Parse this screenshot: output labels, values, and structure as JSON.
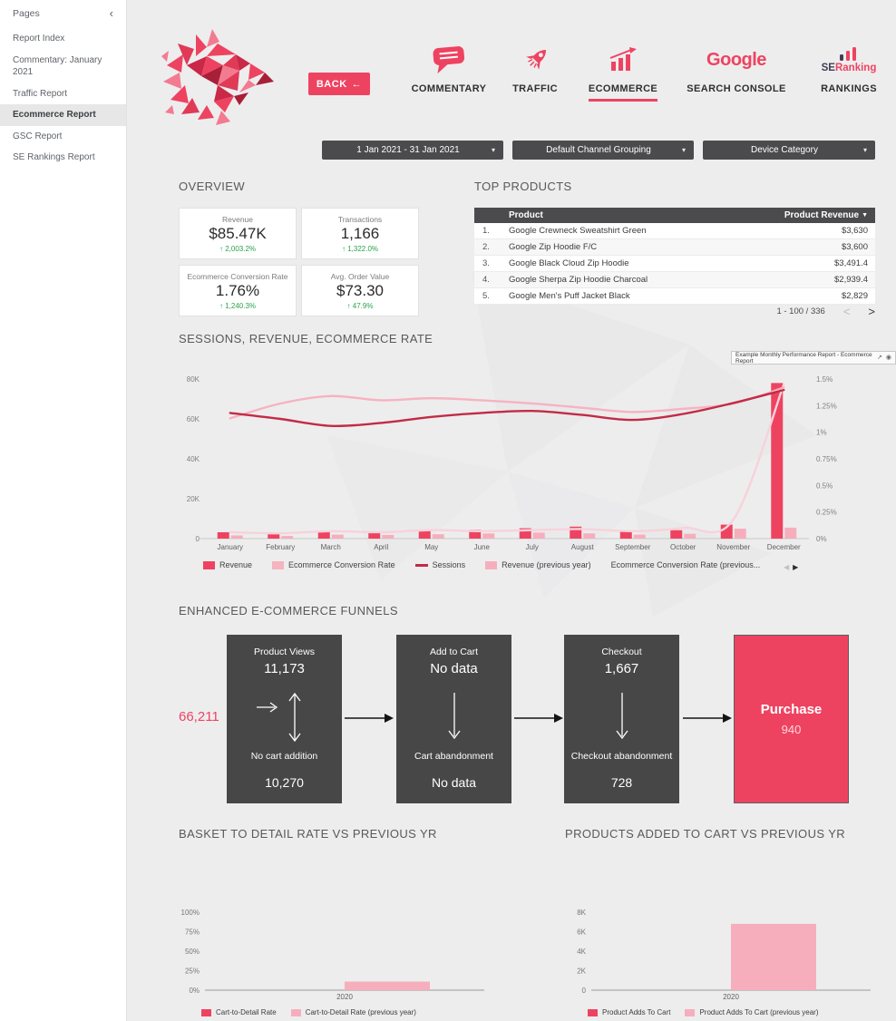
{
  "colors": {
    "accent": "#ee4360",
    "accent_dark": "#c22b45",
    "light_pink": "#f6aebd",
    "pale_pink": "#f8d2da",
    "box_gray": "#474747",
    "positive_green": "#2ba24c",
    "header_bar": "#4b4b4d"
  },
  "ui": {
    "collapse": "‹",
    "caret": "▾",
    "back_arrow": "←",
    "sort_desc": "▼",
    "pagination_prev": "<",
    "pagination_next": ">",
    "legend_prev": "◀",
    "legend_next": "▶",
    "open_icon": "↗",
    "eye_icon": "◉"
  },
  "sidebar": {
    "title": "Pages",
    "items": [
      {
        "label": "Report Index",
        "active": false
      },
      {
        "label": "Commentary: January 2021",
        "active": false
      },
      {
        "label": "Traffic Report",
        "active": false
      },
      {
        "label": "Ecommerce Report",
        "active": true
      },
      {
        "label": "GSC Report",
        "active": false
      },
      {
        "label": "SE Rankings Report",
        "active": false
      }
    ]
  },
  "header": {
    "back_label": "BACK",
    "google_text": "Google",
    "se_text": "SE",
    "ranking_text": "Ranking",
    "nav": [
      {
        "label": "COMMENTARY",
        "active": false
      },
      {
        "label": "TRAFFIC",
        "active": false
      },
      {
        "label": "ECOMMERCE",
        "active": true
      },
      {
        "label": "SEARCH CONSOLE",
        "active": false
      },
      {
        "label": "RANKINGS",
        "active": false
      }
    ]
  },
  "filters": [
    {
      "value": "1 Jan 2021 - 31 Jan 2021"
    },
    {
      "value": "Default Channel Grouping"
    },
    {
      "value": "Device Category"
    }
  ],
  "overview": {
    "title": "OVERVIEW",
    "cards": [
      {
        "label": "Revenue",
        "value": "$85.47K",
        "delta": "↑ 2,003.2%"
      },
      {
        "label": "Transactions",
        "value": "1,166",
        "delta": "↑ 1,322.0%"
      },
      {
        "label": "Ecommerce Conversion Rate",
        "value": "1.76%",
        "delta": "↑ 1,240.3%"
      },
      {
        "label": "Avg. Order Value",
        "value": "$73.30",
        "delta": "↑ 47.9%"
      }
    ]
  },
  "top_products": {
    "title": "TOP PRODUCTS",
    "col_product": "Product",
    "col_revenue": "Product Revenue",
    "rows": [
      {
        "rank": "1.",
        "product": "Google Crewneck Sweatshirt Green",
        "revenue": "$3,630"
      },
      {
        "rank": "2.",
        "product": "Google Zip Hoodie F/C",
        "revenue": "$3,600"
      },
      {
        "rank": "3.",
        "product": "Google Black Cloud Zip Hoodie",
        "revenue": "$3,491.4"
      },
      {
        "rank": "4.",
        "product": "Google Sherpa Zip Hoodie Charcoal",
        "revenue": "$2,939.4"
      },
      {
        "rank": "5.",
        "product": "Google Men's Puff Jacket Black",
        "revenue": "$2,829"
      }
    ],
    "pagination": "1 - 100 / 336"
  },
  "report_chip": {
    "text": "Example Monthly Performance Report - Ecommerce Report"
  },
  "funnel": {
    "title": "ENHANCED E-COMMERCE FUNNELS",
    "total": "66,211",
    "stages": [
      {
        "top_label": "Product Views",
        "top_value": "11,173",
        "bottom_label": "No cart addition",
        "bottom_value": "10,270"
      },
      {
        "top_label": "Add to Cart",
        "top_value": "No data",
        "bottom_label": "Cart abandonment",
        "bottom_value": "No data"
      },
      {
        "top_label": "Checkout",
        "top_value": "1,667",
        "bottom_label": "Checkout abandonment",
        "bottom_value": "728"
      }
    ],
    "purchase": {
      "label": "Purchase",
      "value": "940"
    }
  },
  "chart_data": [
    {
      "id": "sessions_revenue_rate",
      "type": "combo",
      "title": "SESSIONS, REVENUE, ECOMMERCE RATE",
      "categories": [
        "January",
        "February",
        "March",
        "April",
        "May",
        "June",
        "July",
        "August",
        "September",
        "October",
        "November",
        "December"
      ],
      "series": [
        {
          "name": "Revenue",
          "type": "bar",
          "axis": "left",
          "color": "#ee4360",
          "values": [
            3200,
            2400,
            3600,
            3000,
            3800,
            4400,
            5200,
            6000,
            3400,
            4200,
            7000,
            78000
          ]
        },
        {
          "name": "Revenue (previous year)",
          "type": "bar",
          "axis": "left",
          "color": "#f6aebd",
          "values": [
            1600,
            1300,
            2000,
            1800,
            2200,
            2600,
            3000,
            2600,
            2000,
            2400,
            5000,
            5500
          ]
        },
        {
          "name": "Sessions",
          "type": "line",
          "axis": "left",
          "color": "#c22b45",
          "values": [
            63000,
            60000,
            56500,
            58000,
            61000,
            63000,
            64000,
            62000,
            59500,
            62500,
            68000,
            74500
          ]
        },
        {
          "name": "Ecommerce Conversion Rate",
          "type": "line",
          "axis": "right",
          "color": "#f6b3c0",
          "values": [
            1.13,
            1.27,
            1.34,
            1.3,
            1.32,
            1.3,
            1.27,
            1.23,
            1.19,
            1.22,
            1.27,
            1.42
          ]
        },
        {
          "name": "Ecommerce Conversion Rate (previous year)",
          "type": "line",
          "axis": "right",
          "color": "#f8d2da",
          "values": [
            0.06,
            0.05,
            0.07,
            0.06,
            0.08,
            0.07,
            0.08,
            0.09,
            0.07,
            0.1,
            0.18,
            1.45
          ]
        }
      ],
      "left_axis": {
        "max": 80000,
        "ticks": [
          "0",
          "20K",
          "40K",
          "60K",
          "80K"
        ]
      },
      "right_axis": {
        "max": 1.5,
        "ticks": [
          "0%",
          "0.25%",
          "0.5%",
          "0.75%",
          "1%",
          "1.25%",
          "1.5%"
        ]
      },
      "legend": [
        {
          "name": "Revenue",
          "color": "#ee4360"
        },
        {
          "name": "Ecommerce Conversion Rate",
          "color": "#f6b3c0"
        },
        {
          "name": "Sessions",
          "color": "#c22b45"
        },
        {
          "name": "Revenue (previous year)",
          "color": "#f6aebd"
        },
        {
          "name": "Ecommerce Conversion Rate (previous...",
          "color": "#f8d2da"
        }
      ]
    },
    {
      "id": "basket_to_detail",
      "type": "bar",
      "title": "BASKET TO DETAIL RATE VS PREVIOUS YR",
      "categories": [
        "2020"
      ],
      "series": [
        {
          "name": "Cart-to-Detail Rate",
          "color": "#ee4360",
          "values": [
            0
          ]
        },
        {
          "name": "Cart-to-Detail Rate (previous year)",
          "color": "#f6aebd",
          "values": [
            11
          ]
        }
      ],
      "max": 100,
      "y_ticks": [
        "0%",
        "25%",
        "50%",
        "75%",
        "100%"
      ]
    },
    {
      "id": "product_adds_to_cart",
      "type": "bar",
      "title": "PRODUCTS ADDED TO CART VS PREVIOUS YR",
      "categories": [
        "2020"
      ],
      "series": [
        {
          "name": "Product Adds To Cart",
          "color": "#ee4360",
          "values": [
            0
          ]
        },
        {
          "name": "Product Adds To Cart (previous year)",
          "color": "#f6aebd",
          "values": [
            6800
          ]
        }
      ],
      "max": 8000,
      "y_ticks": [
        "0",
        "2K",
        "4K",
        "6K",
        "8K"
      ]
    }
  ]
}
